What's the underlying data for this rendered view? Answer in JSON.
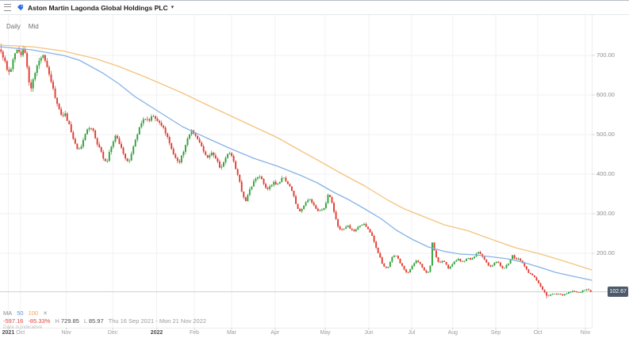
{
  "header": {
    "title": "Aston Martin Lagonda Global Holdings PLC",
    "dropdown_glyph": "▾"
  },
  "toolbar": {
    "tabs": [
      {
        "id": "daily",
        "label": "Daily"
      },
      {
        "id": "mid",
        "label": "Mid"
      }
    ]
  },
  "legend": {
    "indicator_label": "MA",
    "periods": [
      {
        "label": "50",
        "color": "#5f94e0"
      },
      {
        "label": "100",
        "color": "#f2a44e"
      }
    ],
    "close_glyph": "✕"
  },
  "stats": {
    "change": "-597.16",
    "change_pct": "-85.33%",
    "high_label": "H",
    "high": "729.85",
    "low_label": "L",
    "low": "85.97",
    "date_range": "Thu 16 Sep 2021 - Mon 21 Nov 2022"
  },
  "footnote": "Data is indicative",
  "price_scale": {
    "ticks": [
      {
        "label": "700.00",
        "value": 700
      },
      {
        "label": "600.00",
        "value": 600
      },
      {
        "label": "500.00",
        "value": 500
      },
      {
        "label": "400.00",
        "value": 400
      },
      {
        "label": "300.00",
        "value": 300
      },
      {
        "label": "200.00",
        "value": 200
      }
    ],
    "last_price": "102.67",
    "badge_color": "#4d5a6b"
  },
  "time_scale": {
    "ticks": [
      {
        "label": "2021",
        "pos": 0.014,
        "bold": true
      },
      {
        "label": "Oct",
        "pos": 0.0345
      },
      {
        "label": "Nov",
        "pos": 0.112
      },
      {
        "label": "Dec",
        "pos": 0.1905
      },
      {
        "label": "2022",
        "pos": 0.2648,
        "bold": true
      },
      {
        "label": "Feb",
        "pos": 0.3284
      },
      {
        "label": "Mar",
        "pos": 0.3914
      },
      {
        "label": "Apr",
        "pos": 0.4648
      },
      {
        "label": "May",
        "pos": 0.5496
      },
      {
        "label": "Jun",
        "pos": 0.6233
      },
      {
        "label": "Jul",
        "pos": 0.6957
      },
      {
        "label": "Aug",
        "pos": 0.7652
      },
      {
        "label": "Sep",
        "pos": 0.8378
      },
      {
        "label": "Oct",
        "pos": 0.9089
      },
      {
        "label": "Nov",
        "pos": 0.9893
      }
    ]
  },
  "chart_data": {
    "type": "candlestick",
    "title": "Aston Martin Lagonda Global Holdings PLC",
    "timeframe": "Daily",
    "date_range": "Thu 16 Sep 2021 - Mon 21 Nov 2022",
    "high": 729.85,
    "low": 85.97,
    "change": -597.16,
    "change_pct": -85.33,
    "last_price": 102.67,
    "ylim": [
      12,
      804
    ],
    "y_gridlines": [
      700,
      600,
      500,
      400,
      300,
      200
    ],
    "grid": true,
    "legend_position": "bottom-left",
    "up_color": "#2fa13a",
    "down_color": "#e13b30",
    "num_candles": 295,
    "price_path_note": "close-price keypoints; x = 0..746 position across visible range (16 Sep 2021 to 21 Nov 2022)",
    "price_path": [
      [
        0,
        712
      ],
      [
        3,
        700
      ],
      [
        6,
        690
      ],
      [
        10,
        656
      ],
      [
        14,
        668
      ],
      [
        18,
        700
      ],
      [
        22,
        712
      ],
      [
        26,
        700
      ],
      [
        30,
        724
      ],
      [
        33,
        682
      ],
      [
        36,
        642
      ],
      [
        39,
        616
      ],
      [
        43,
        650
      ],
      [
        47,
        672
      ],
      [
        51,
        694
      ],
      [
        55,
        700
      ],
      [
        58,
        681
      ],
      [
        62,
        650
      ],
      [
        66,
        620
      ],
      [
        70,
        590
      ],
      [
        74,
        565
      ],
      [
        78,
        545
      ],
      [
        82,
        552
      ],
      [
        86,
        530
      ],
      [
        90,
        505
      ],
      [
        94,
        478
      ],
      [
        98,
        458
      ],
      [
        102,
        470
      ],
      [
        106,
        495
      ],
      [
        110,
        510
      ],
      [
        114,
        522
      ],
      [
        118,
        505
      ],
      [
        122,
        480
      ],
      [
        126,
        465
      ],
      [
        130,
        440
      ],
      [
        134,
        428
      ],
      [
        138,
        455
      ],
      [
        142,
        480
      ],
      [
        146,
        498
      ],
      [
        150,
        478
      ],
      [
        154,
        460
      ],
      [
        158,
        442
      ],
      [
        162,
        430
      ],
      [
        166,
        455
      ],
      [
        170,
        480
      ],
      [
        174,
        508
      ],
      [
        178,
        530
      ],
      [
        182,
        545
      ],
      [
        186,
        535
      ],
      [
        190,
        540
      ],
      [
        194,
        548
      ],
      [
        198,
        538
      ],
      [
        202,
        530
      ],
      [
        206,
        515
      ],
      [
        210,
        498
      ],
      [
        214,
        480
      ],
      [
        218,
        455
      ],
      [
        222,
        438
      ],
      [
        226,
        428
      ],
      [
        230,
        452
      ],
      [
        234,
        475
      ],
      [
        238,
        498
      ],
      [
        242,
        510
      ],
      [
        246,
        500
      ],
      [
        250,
        488
      ],
      [
        254,
        470
      ],
      [
        258,
        452
      ],
      [
        262,
        440
      ],
      [
        266,
        458
      ],
      [
        270,
        448
      ],
      [
        274,
        430
      ],
      [
        278,
        415
      ],
      [
        282,
        430
      ],
      [
        286,
        445
      ],
      [
        290,
        455
      ],
      [
        294,
        438
      ],
      [
        298,
        410
      ],
      [
        302,
        380
      ],
      [
        306,
        345
      ],
      [
        310,
        330
      ],
      [
        314,
        355
      ],
      [
        318,
        375
      ],
      [
        322,
        390
      ],
      [
        326,
        398
      ],
      [
        330,
        385
      ],
      [
        334,
        370
      ],
      [
        338,
        360
      ],
      [
        342,
        372
      ],
      [
        346,
        380
      ],
      [
        350,
        372
      ],
      [
        354,
        388
      ],
      [
        358,
        390
      ],
      [
        362,
        378
      ],
      [
        366,
        365
      ],
      [
        370,
        345
      ],
      [
        374,
        318
      ],
      [
        378,
        305
      ],
      [
        382,
        318
      ],
      [
        386,
        332
      ],
      [
        390,
        338
      ],
      [
        394,
        328
      ],
      [
        398,
        315
      ],
      [
        402,
        305
      ],
      [
        406,
        310
      ],
      [
        410,
        318
      ],
      [
        414,
        352
      ],
      [
        418,
        330
      ],
      [
        422,
        295
      ],
      [
        426,
        270
      ],
      [
        430,
        258
      ],
      [
        434,
        262
      ],
      [
        438,
        270
      ],
      [
        442,
        262
      ],
      [
        446,
        255
      ],
      [
        450,
        262
      ],
      [
        454,
        270
      ],
      [
        458,
        275
      ],
      [
        462,
        268
      ],
      [
        466,
        255
      ],
      [
        470,
        240
      ],
      [
        474,
        215
      ],
      [
        478,
        195
      ],
      [
        482,
        172
      ],
      [
        486,
        160
      ],
      [
        490,
        168
      ],
      [
        494,
        188
      ],
      [
        498,
        196
      ],
      [
        502,
        185
      ],
      [
        506,
        170
      ],
      [
        510,
        158
      ],
      [
        514,
        150
      ],
      [
        518,
        162
      ],
      [
        522,
        175
      ],
      [
        526,
        182
      ],
      [
        530,
        172
      ],
      [
        534,
        160
      ],
      [
        538,
        148
      ],
      [
        542,
        160
      ],
      [
        545,
        228
      ],
      [
        548,
        205
      ],
      [
        551,
        185
      ],
      [
        554,
        175
      ],
      [
        558,
        182
      ],
      [
        562,
        172
      ],
      [
        566,
        160
      ],
      [
        570,
        172
      ],
      [
        574,
        180
      ],
      [
        578,
        186
      ],
      [
        582,
        178
      ],
      [
        586,
        183
      ],
      [
        590,
        188
      ],
      [
        594,
        185
      ],
      [
        598,
        192
      ],
      [
        602,
        205
      ],
      [
        606,
        198
      ],
      [
        610,
        185
      ],
      [
        614,
        175
      ],
      [
        618,
        165
      ],
      [
        622,
        172
      ],
      [
        626,
        180
      ],
      [
        630,
        172
      ],
      [
        634,
        160
      ],
      [
        638,
        168
      ],
      [
        642,
        178
      ],
      [
        646,
        196
      ],
      [
        650,
        182
      ],
      [
        654,
        188
      ],
      [
        658,
        178
      ],
      [
        662,
        165
      ],
      [
        666,
        152
      ],
      [
        670,
        145
      ],
      [
        674,
        138
      ],
      [
        678,
        128
      ],
      [
        682,
        115
      ],
      [
        686,
        102
      ],
      [
        690,
        92
      ],
      [
        694,
        96
      ],
      [
        698,
        100
      ],
      [
        702,
        95
      ],
      [
        706,
        98
      ],
      [
        710,
        94
      ],
      [
        714,
        98
      ],
      [
        718,
        102
      ],
      [
        722,
        106
      ],
      [
        726,
        104
      ],
      [
        730,
        100
      ],
      [
        734,
        105
      ],
      [
        738,
        108
      ],
      [
        742,
        108
      ],
      [
        746,
        102.67
      ]
    ],
    "overlays": [
      {
        "name": "MA 50",
        "color": "#85b3e6",
        "points": [
          [
            0,
            722
          ],
          [
            40,
            714
          ],
          [
            80,
            700
          ],
          [
            100,
            688
          ],
          [
            130,
            655
          ],
          [
            150,
            628
          ],
          [
            170,
            596
          ],
          [
            200,
            558
          ],
          [
            230,
            520
          ],
          [
            260,
            492
          ],
          [
            290,
            465
          ],
          [
            320,
            440
          ],
          [
            350,
            420
          ],
          [
            380,
            396
          ],
          [
            400,
            378
          ],
          [
            420,
            355
          ],
          [
            440,
            335
          ],
          [
            460,
            312
          ],
          [
            480,
            288
          ],
          [
            500,
            258
          ],
          [
            520,
            235
          ],
          [
            540,
            216
          ],
          [
            560,
            205
          ],
          [
            580,
            198
          ],
          [
            600,
            196
          ],
          [
            620,
            191
          ],
          [
            640,
            186
          ],
          [
            660,
            177
          ],
          [
            680,
            165
          ],
          [
            700,
            152
          ],
          [
            720,
            143
          ],
          [
            746,
            132
          ]
        ]
      },
      {
        "name": "MA 100",
        "color": "#f4c37d",
        "points": [
          [
            0,
            726
          ],
          [
            40,
            722
          ],
          [
            80,
            711
          ],
          [
            120,
            692
          ],
          [
            150,
            672
          ],
          [
            180,
            648
          ],
          [
            200,
            631
          ],
          [
            230,
            605
          ],
          [
            260,
            576
          ],
          [
            290,
            548
          ],
          [
            320,
            520
          ],
          [
            350,
            492
          ],
          [
            380,
            458
          ],
          [
            400,
            436
          ],
          [
            430,
            402
          ],
          [
            460,
            370
          ],
          [
            490,
            333
          ],
          [
            510,
            312
          ],
          [
            530,
            296
          ],
          [
            560,
            272
          ],
          [
            590,
            257
          ],
          [
            620,
            235
          ],
          [
            650,
            214
          ],
          [
            680,
            199
          ],
          [
            710,
            181
          ],
          [
            746,
            158
          ]
        ]
      }
    ]
  }
}
